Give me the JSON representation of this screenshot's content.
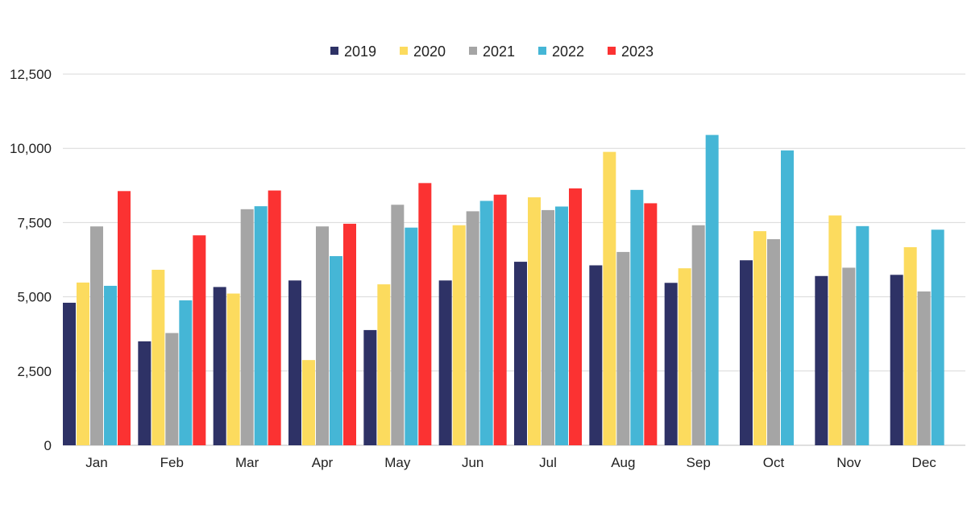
{
  "chart_data": {
    "type": "bar",
    "title": "",
    "xlabel": "",
    "ylabel": "",
    "categories": [
      "Jan",
      "Feb",
      "Mar",
      "Apr",
      "May",
      "Jun",
      "Jul",
      "Aug",
      "Sep",
      "Oct",
      "Nov",
      "Dec"
    ],
    "series": [
      {
        "name": "2019",
        "color": "#2e3266",
        "values": [
          4800,
          3500,
          5330,
          5550,
          3880,
          5550,
          6180,
          6060,
          5470,
          6230,
          5700,
          5740
        ]
      },
      {
        "name": "2020",
        "color": "#fcdb5e",
        "values": [
          5480,
          5910,
          5110,
          2870,
          5420,
          7410,
          8350,
          9880,
          5960,
          7210,
          7740,
          6670
        ]
      },
      {
        "name": "2021",
        "color": "#a5a5a5",
        "values": [
          7370,
          3780,
          7950,
          7370,
          8100,
          7880,
          7920,
          6510,
          7410,
          6940,
          5980,
          5180
        ]
      },
      {
        "name": "2022",
        "color": "#45b6d6",
        "values": [
          5370,
          4880,
          8050,
          6370,
          7330,
          8230,
          8040,
          8600,
          10450,
          9930,
          7380,
          7260
        ]
      },
      {
        "name": "2023",
        "color": "#fb3232",
        "values": [
          8560,
          7070,
          8580,
          7460,
          8830,
          8440,
          8650,
          8150,
          null,
          null,
          null,
          null
        ]
      }
    ],
    "ylim": [
      0,
      12500
    ],
    "yticks": [
      0,
      2500,
      5000,
      7500,
      10000,
      12500
    ],
    "ytick_labels": [
      "0",
      "2,500",
      "5,000",
      "7,500",
      "10,000",
      "12,500"
    ],
    "grid": true,
    "legend_position": "top-center"
  }
}
